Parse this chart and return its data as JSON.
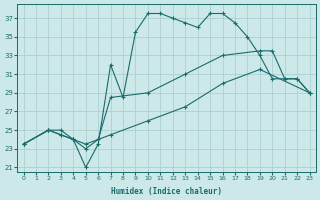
{
  "xlabel": "Humidex (Indice chaleur)",
  "ylabel": "",
  "bg_color": "#cce8e8",
  "grid_color": "#aed0d0",
  "line_color": "#1a6b6b",
  "xlim": [
    -0.5,
    23.5
  ],
  "ylim": [
    20.5,
    38.5
  ],
  "yticks": [
    21,
    23,
    25,
    27,
    29,
    31,
    33,
    35,
    37
  ],
  "xticks": [
    0,
    1,
    2,
    3,
    4,
    5,
    6,
    7,
    8,
    9,
    10,
    11,
    12,
    13,
    14,
    15,
    16,
    17,
    18,
    19,
    20,
    21,
    22,
    23
  ],
  "series": [
    {
      "x": [
        0,
        2,
        3,
        4,
        5,
        6,
        7,
        8,
        9,
        10,
        11,
        12,
        13,
        14,
        15,
        16,
        17,
        18,
        19,
        20,
        21,
        22,
        23
      ],
      "y": [
        23.5,
        25.0,
        25.0,
        24.0,
        21.0,
        23.5,
        32.0,
        28.5,
        35.5,
        37.5,
        37.5,
        37.0,
        36.5,
        36.0,
        37.5,
        37.5,
        36.5,
        35.0,
        33.0,
        30.5,
        30.5,
        30.5,
        29.0
      ]
    },
    {
      "x": [
        0,
        2,
        3,
        4,
        5,
        6,
        7,
        10,
        13,
        16,
        19,
        20,
        21,
        22,
        23
      ],
      "y": [
        23.5,
        25.0,
        24.5,
        24.0,
        23.0,
        24.0,
        28.5,
        29.0,
        31.0,
        33.0,
        33.5,
        33.5,
        30.5,
        30.5,
        29.0
      ]
    },
    {
      "x": [
        0,
        2,
        3,
        4,
        5,
        7,
        10,
        13,
        16,
        19,
        23
      ],
      "y": [
        23.5,
        25.0,
        24.5,
        24.0,
        23.5,
        24.5,
        26.0,
        27.5,
        30.0,
        31.5,
        29.0
      ]
    }
  ]
}
